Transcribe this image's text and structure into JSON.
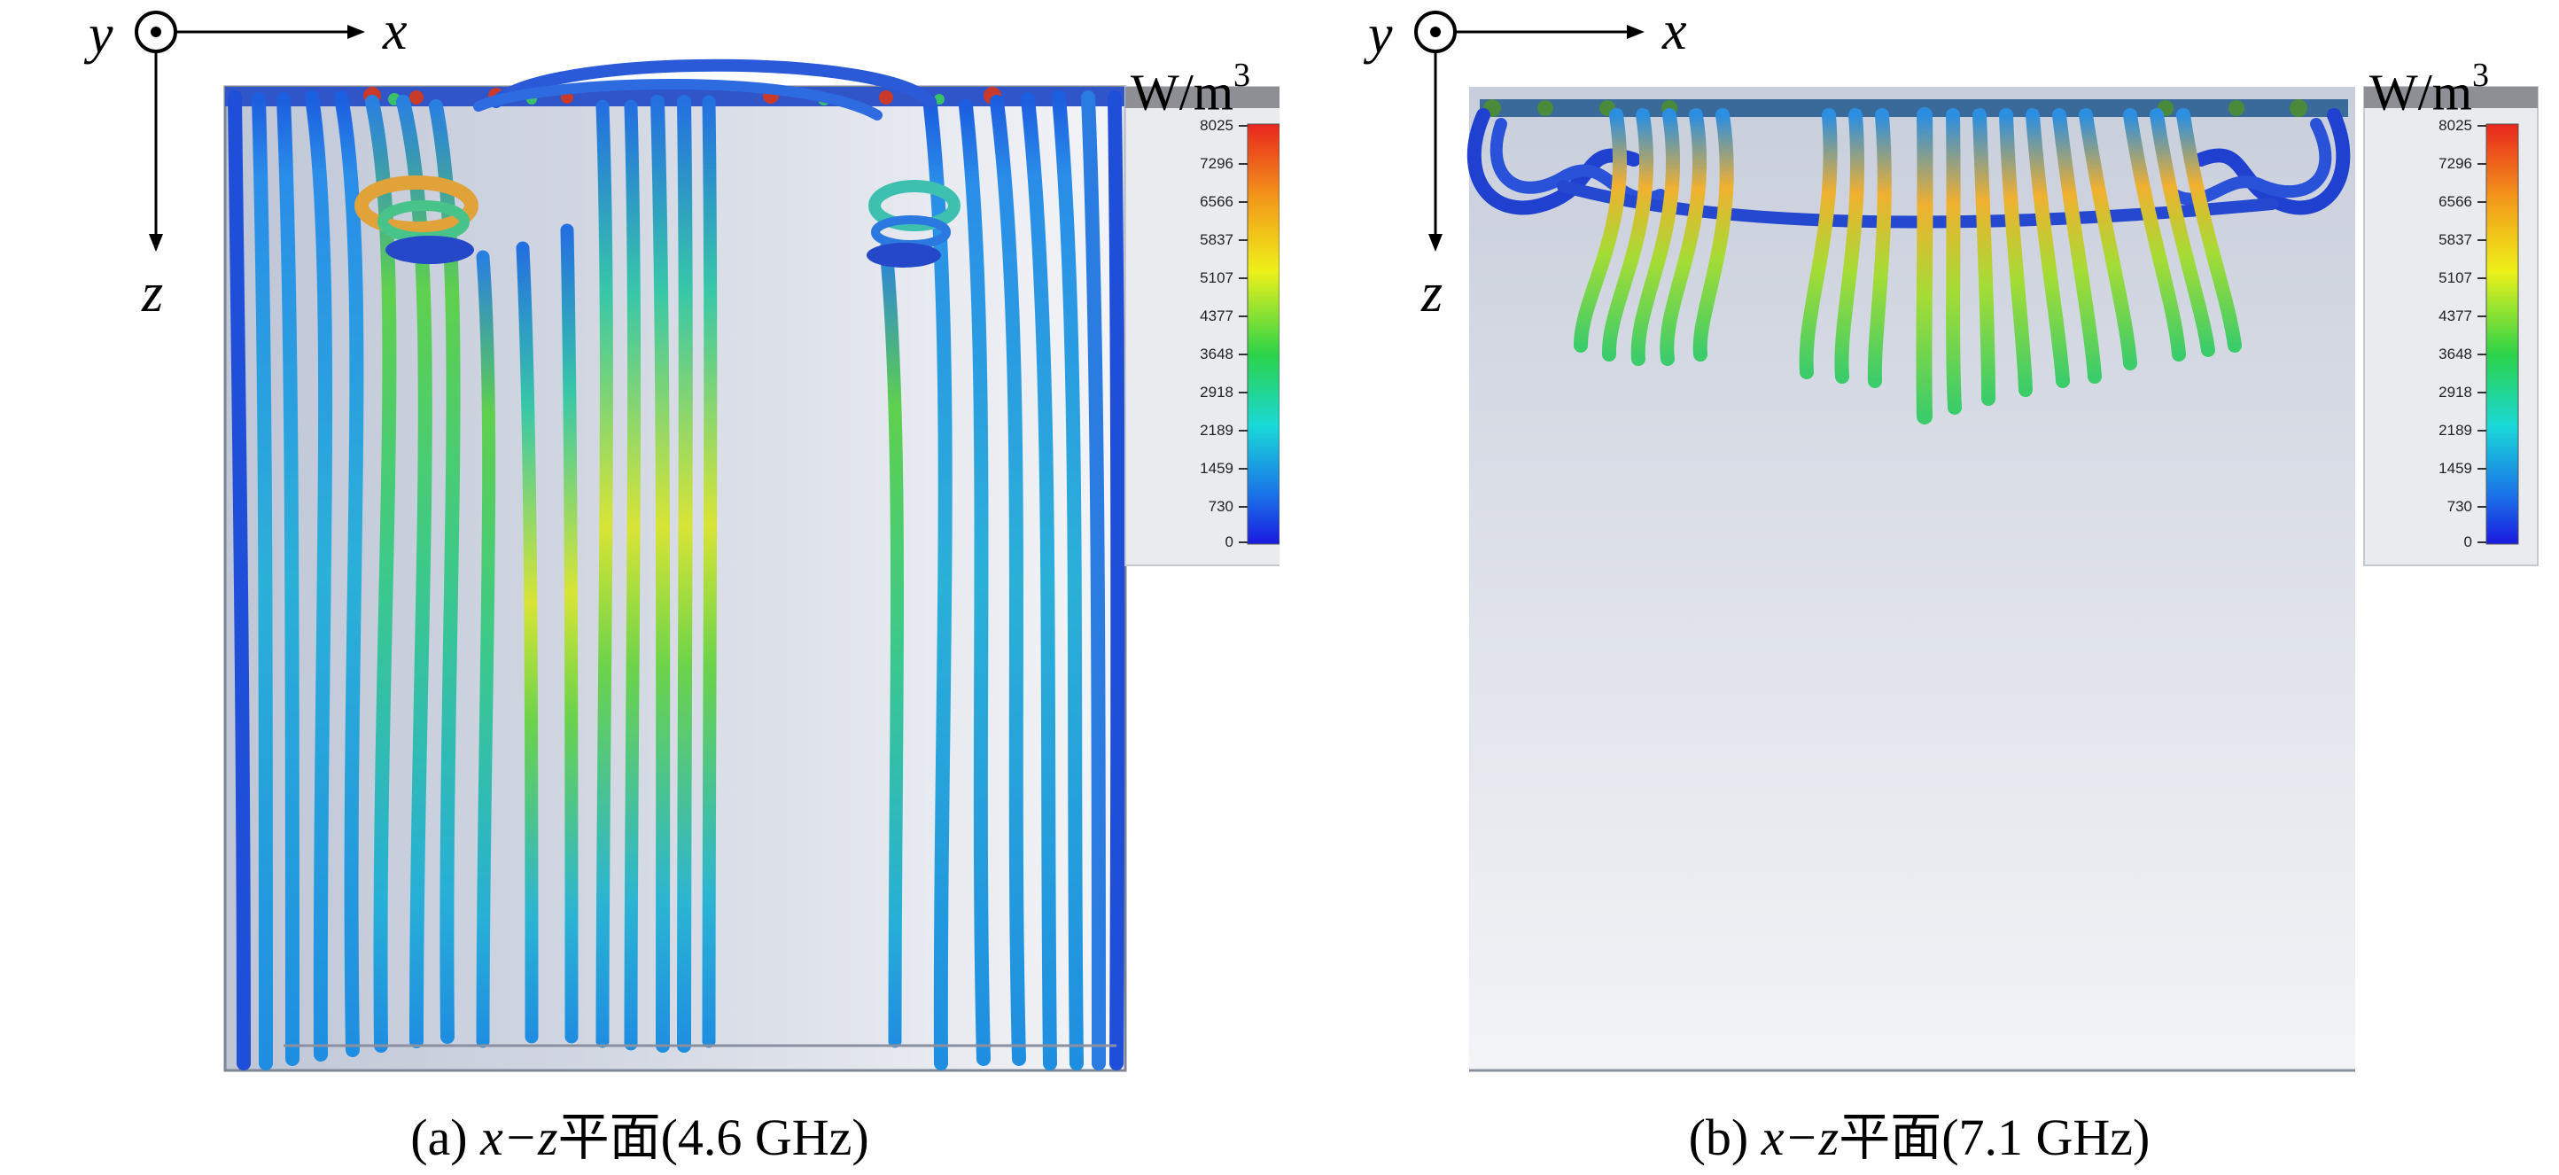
{
  "axes": {
    "x": "x",
    "y": "y",
    "z": "z"
  },
  "colorbar": {
    "unit_base": "W/m",
    "unit_exp": "3",
    "ticks": [
      "8025",
      "7296",
      "6566",
      "5837",
      "5107",
      "4377",
      "3648",
      "2918",
      "2189",
      "1459",
      "730",
      "0"
    ]
  },
  "panels": [
    {
      "prefix": "(a) ",
      "plane": "x−z",
      "plane_cn": "平面",
      "freq": "(4.6 GHz)"
    },
    {
      "prefix": "(b) ",
      "plane": "x−z",
      "plane_cn": "平面",
      "freq": "(7.1 GHz)"
    }
  ]
}
